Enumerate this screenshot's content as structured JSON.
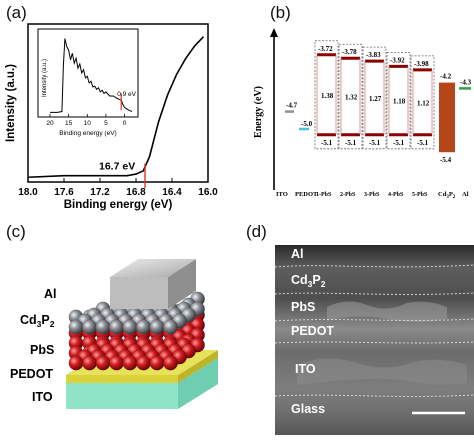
{
  "panels": {
    "a": "(a)",
    "b": "(b)",
    "c": "(c)",
    "d": "(d)"
  },
  "chart_data": {
    "type": "line",
    "xlabel": "Binding energy (eV)",
    "ylabel": "Intensity (a.u.)",
    "xlim": [
      18.0,
      16.0
    ],
    "x_ticks": [
      "18.0",
      "17.6",
      "17.2",
      "16.8",
      "16.4",
      "16.0"
    ],
    "annotation": "16.7 eV",
    "series": [
      {
        "x": [
          18.0,
          17.6,
          17.2,
          16.9,
          16.8,
          16.72,
          16.65,
          16.55,
          16.45,
          16.35,
          16.25,
          16.15,
          16.05
        ],
        "y": [
          0.03,
          0.04,
          0.04,
          0.04,
          0.05,
          0.07,
          0.16,
          0.38,
          0.55,
          0.68,
          0.78,
          0.86,
          0.92
        ]
      }
    ],
    "inset": {
      "xlabel": "Binding energy (eV)",
      "ylabel": "Intensity (a.u.)",
      "x_ticks": [
        "20",
        "15",
        "10",
        "5",
        "0"
      ],
      "annotation": "0.9 eV",
      "series": [
        {
          "x": [
            20,
            18,
            16.8,
            16.4,
            16,
            15.5,
            15,
            14.5,
            14,
            13.5,
            13,
            12.5,
            12,
            11.5,
            11,
            10.5,
            10,
            9.5,
            9,
            8.5,
            8,
            7.5,
            7,
            6.5,
            6,
            5.5,
            5,
            4,
            3,
            2,
            1,
            0.9,
            0.5,
            0,
            -1,
            -2
          ],
          "y": [
            0.02,
            0.02,
            0.03,
            0.6,
            0.92,
            0.82,
            0.78,
            0.66,
            0.74,
            0.62,
            0.68,
            0.56,
            0.61,
            0.5,
            0.54,
            0.44,
            0.46,
            0.38,
            0.4,
            0.33,
            0.34,
            0.3,
            0.32,
            0.27,
            0.29,
            0.25,
            0.27,
            0.22,
            0.22,
            0.19,
            0.17,
            0.17,
            0.12,
            0.08,
            0.05,
            0.03
          ]
        }
      ]
    }
  },
  "energy_diagram": {
    "ylabel": "Energy (eV)",
    "colors": {
      "ito": "#909090",
      "pedot": "#4fc3d8",
      "pbs_line": "#8b0000",
      "cd3p2": "#b5461a",
      "al": "#2e9e4f",
      "box_border": "#666666"
    },
    "ito": {
      "label": "ITO",
      "level": "-4.7",
      "energy": -4.7
    },
    "pedot": {
      "label": "PEDOT",
      "level": "-5.0",
      "energy": -5.0
    },
    "pbs": [
      {
        "label": "1-PbS",
        "cb": "-3.72",
        "gap": "1.38",
        "vb": "-5.1",
        "cb_e": -3.72,
        "vb_e": -5.1
      },
      {
        "label": "2-PbS",
        "cb": "-3.78",
        "gap": "1.32",
        "vb": "-5.1",
        "cb_e": -3.78,
        "vb_e": -5.1
      },
      {
        "label": "3-PbS",
        "cb": "-3.83",
        "gap": "1.27",
        "vb": "-5.1",
        "cb_e": -3.83,
        "vb_e": -5.1
      },
      {
        "label": "4-PbS",
        "cb": "-3.92",
        "gap": "1.18",
        "vb": "-5.1",
        "cb_e": -3.92,
        "vb_e": -5.1
      },
      {
        "label": "5-PbS",
        "cb": "-3.98",
        "gap": "1.12",
        "vb": "-5.1",
        "cb_e": -3.98,
        "vb_e": -5.1
      }
    ],
    "cd3p2": {
      "label_main": "Cd",
      "label_sub1": "3",
      "label_mid": "P",
      "label_sub2": "2",
      "cb": "-4.2",
      "vb": "-5.4",
      "cb_e": -4.2,
      "vb_e": -5.4
    },
    "al": {
      "label": "Al",
      "level": "-4.3",
      "energy": -4.3
    }
  },
  "device_schematic": {
    "labels": {
      "al": "Al",
      "cd_main": "Cd",
      "cd_sub1": "3",
      "cd_mid": "P",
      "cd_sub2": "2",
      "pbs": "PbS",
      "pedot": "PEDOT",
      "ito": "ITO"
    },
    "colors": {
      "al": "#b8b8b8",
      "cd3p2_sphere": "#7a7f86",
      "pbs_sphere": "#c4161c",
      "pedot": "#d9d23a",
      "ito": "#8fe3c7"
    }
  },
  "sem": {
    "labels": {
      "al": "Al",
      "cd_main": "Cd",
      "cd_sub1": "3",
      "cd_mid": "P",
      "cd_sub2": "2",
      "pbs": "PbS",
      "pedot": "PEDOT",
      "ito": "ITO",
      "glass": "Glass"
    }
  }
}
